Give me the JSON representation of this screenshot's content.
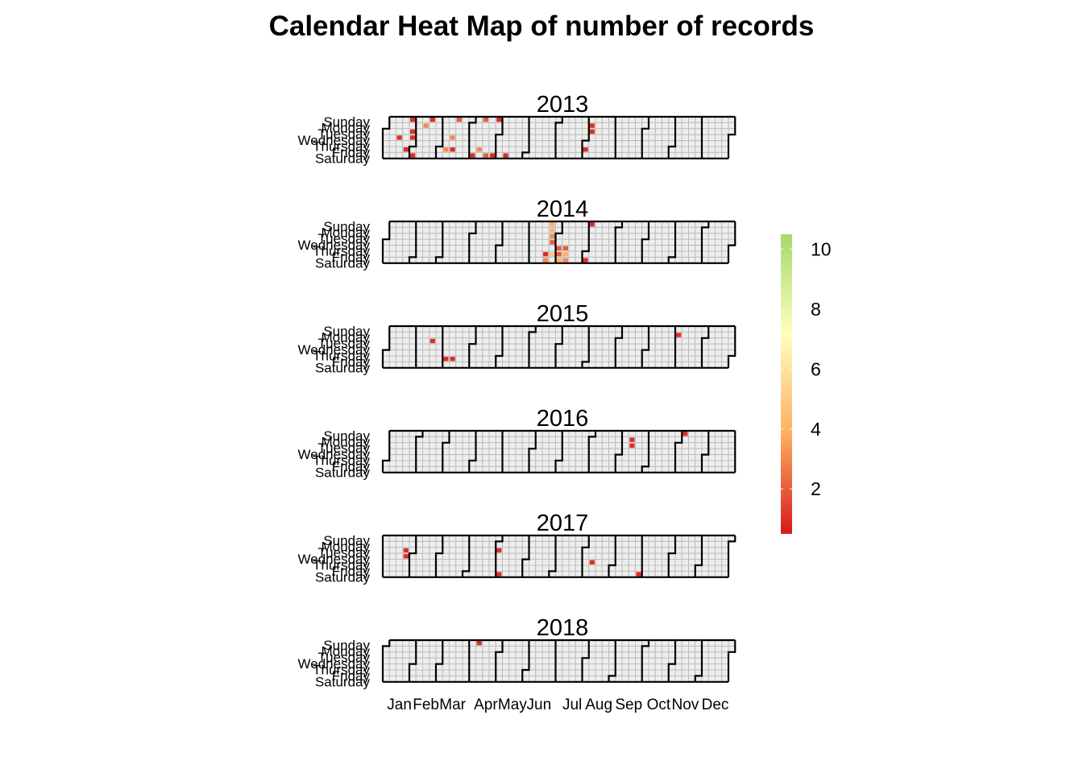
{
  "chart_data": {
    "type": "heatmap",
    "title": "Calendar Heat Map of number of records",
    "years": [
      "2013",
      "2014",
      "2015",
      "2016",
      "2017",
      "2018"
    ],
    "day_labels": [
      "Sunday",
      "Monday",
      "Tuesday",
      "Wednesday",
      "Thursday",
      "Friday",
      "Saturday"
    ],
    "month_labels": [
      "Jan",
      "Feb",
      "Mar",
      "Apr",
      "May",
      "Jun",
      "Jul",
      "Aug",
      "Sep",
      "Oct",
      "Nov",
      "Dec"
    ],
    "legend": {
      "ticks": [
        10,
        8,
        6,
        4,
        2
      ],
      "range": [
        0.5,
        10.5
      ],
      "placement": "right",
      "colors": [
        "#d7191c",
        "#fdae61",
        "#ffffbf",
        "#a6d96a"
      ]
    },
    "grid_color": "#bdbdbd",
    "empty_cell_color": "#eeeeee",
    "records": [
      {
        "year": "2013",
        "week": 2,
        "weekday": 3,
        "value": 1
      },
      {
        "year": "2013",
        "week": 3,
        "weekday": 5,
        "value": 1
      },
      {
        "year": "2013",
        "week": 4,
        "weekday": 0,
        "value": 1
      },
      {
        "year": "2013",
        "week": 4,
        "weekday": 2,
        "value": 1
      },
      {
        "year": "2013",
        "week": 4,
        "weekday": 3,
        "value": 1
      },
      {
        "year": "2013",
        "week": 4,
        "weekday": 6,
        "value": 1
      },
      {
        "year": "2013",
        "week": 6,
        "weekday": 1,
        "value": 3
      },
      {
        "year": "2013",
        "week": 7,
        "weekday": 0,
        "value": 1
      },
      {
        "year": "2013",
        "week": 9,
        "weekday": 5,
        "value": 3
      },
      {
        "year": "2013",
        "week": 10,
        "weekday": 3,
        "value": 3
      },
      {
        "year": "2013",
        "week": 10,
        "weekday": 5,
        "value": 1
      },
      {
        "year": "2013",
        "week": 11,
        "weekday": 0,
        "value": 2
      },
      {
        "year": "2013",
        "week": 13,
        "weekday": 6,
        "value": 1
      },
      {
        "year": "2013",
        "week": 14,
        "weekday": 5,
        "value": 3
      },
      {
        "year": "2013",
        "week": 15,
        "weekday": 0,
        "value": 2
      },
      {
        "year": "2013",
        "week": 15,
        "weekday": 6,
        "value": 2
      },
      {
        "year": "2013",
        "week": 16,
        "weekday": 6,
        "value": 1
      },
      {
        "year": "2013",
        "week": 17,
        "weekday": 0,
        "value": 1
      },
      {
        "year": "2013",
        "week": 18,
        "weekday": 6,
        "value": 1
      },
      {
        "year": "2013",
        "week": 30,
        "weekday": 5,
        "value": 1
      },
      {
        "year": "2013",
        "week": 31,
        "weekday": 1,
        "value": 1
      },
      {
        "year": "2013",
        "week": 31,
        "weekday": 2,
        "value": 1
      },
      {
        "year": "2014",
        "week": 25,
        "weekday": 0,
        "value": 4
      },
      {
        "year": "2014",
        "week": 25,
        "weekday": 1,
        "value": 4
      },
      {
        "year": "2014",
        "week": 25,
        "weekday": 2,
        "value": 3
      },
      {
        "year": "2014",
        "week": 25,
        "weekday": 3,
        "value": 2
      },
      {
        "year": "2014",
        "week": 25,
        "weekday": 5,
        "value": 5
      },
      {
        "year": "2014",
        "week": 24,
        "weekday": 5,
        "value": 1
      },
      {
        "year": "2014",
        "week": 24,
        "weekday": 6,
        "value": 3
      },
      {
        "year": "2014",
        "week": 26,
        "weekday": 4,
        "value": 2
      },
      {
        "year": "2014",
        "week": 26,
        "weekday": 5,
        "value": 2
      },
      {
        "year": "2014",
        "week": 27,
        "weekday": 4,
        "value": 2
      },
      {
        "year": "2014",
        "week": 27,
        "weekday": 5,
        "value": 4
      },
      {
        "year": "2014",
        "week": 27,
        "weekday": 6,
        "value": 3
      },
      {
        "year": "2014",
        "week": 26,
        "weekday": 6,
        "value": 4
      },
      {
        "year": "2014",
        "week": 30,
        "weekday": 6,
        "value": 1
      },
      {
        "year": "2014",
        "week": 31,
        "weekday": 0,
        "value": 1
      },
      {
        "year": "2015",
        "week": 7,
        "weekday": 2,
        "value": 1
      },
      {
        "year": "2015",
        "week": 9,
        "weekday": 5,
        "value": 1
      },
      {
        "year": "2015",
        "week": 10,
        "weekday": 5,
        "value": 1
      },
      {
        "year": "2015",
        "week": 44,
        "weekday": 1,
        "value": 1
      },
      {
        "year": "2016",
        "week": 37,
        "weekday": 1,
        "value": 1
      },
      {
        "year": "2016",
        "week": 37,
        "weekday": 2,
        "value": 1
      },
      {
        "year": "2016",
        "week": 45,
        "weekday": 0,
        "value": 1
      },
      {
        "year": "2017",
        "week": 3,
        "weekday": 2,
        "value": 1
      },
      {
        "year": "2017",
        "week": 3,
        "weekday": 3,
        "value": 1
      },
      {
        "year": "2017",
        "week": 17,
        "weekday": 2,
        "value": 1
      },
      {
        "year": "2017",
        "week": 17,
        "weekday": 6,
        "value": 1
      },
      {
        "year": "2017",
        "week": 31,
        "weekday": 4,
        "value": 1
      },
      {
        "year": "2017",
        "week": 38,
        "weekday": 6,
        "value": 1
      },
      {
        "year": "2018",
        "week": 14,
        "weekday": 0,
        "value": 1
      }
    ]
  }
}
